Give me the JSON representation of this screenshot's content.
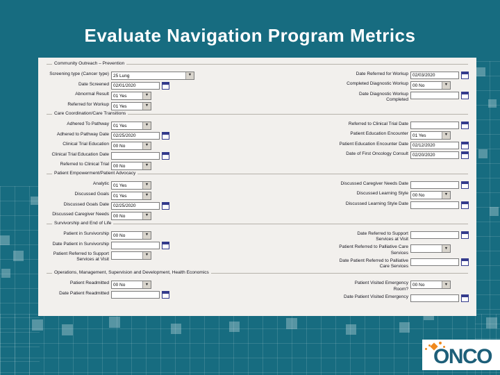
{
  "title": "Evaluate Navigation Program Metrics",
  "logo": {
    "text": "ONCO"
  },
  "theme": {
    "background_teal": "#176c80",
    "panel_background": "#f2f0ed",
    "title_color": "#ffffff",
    "logo_teal": "#1d5f79",
    "logo_orange": "#f0891e",
    "grid_square": "rgba(255,255,255,0.28)"
  },
  "form": {
    "sections": [
      {
        "header": "Community Outreach – Prevention",
        "left": [
          {
            "label": "Screening type (Cancer type)",
            "type": "select",
            "value": "25 Lung",
            "wide": true
          },
          {
            "label": "Date Screened",
            "type": "date",
            "value": "02/01/2020"
          },
          {
            "label": "Abnormal Result",
            "type": "select",
            "value": "01 Yes"
          },
          {
            "label": "Referred for Workup",
            "type": "select",
            "value": "01 Yes"
          }
        ],
        "right": [
          {
            "label": "Date Referred for Workup",
            "type": "date",
            "value": "02/03/2020"
          },
          {
            "label": "Completed Diagnostic Workup",
            "type": "select",
            "value": "00 No"
          },
          {
            "label": "Date Diagnostic Workup Completed",
            "type": "date",
            "value": ""
          }
        ]
      },
      {
        "header": "Care Coordination/Care Transitions",
        "left": [
          {
            "label": "Adhered To Pathway",
            "type": "select",
            "value": "01 Yes"
          },
          {
            "label": "Adhered to Pathway Date",
            "type": "date",
            "value": "02/25/2020"
          },
          {
            "label": "Clinical Trial Education",
            "type": "select",
            "value": "00 No"
          },
          {
            "label": "Clinical Trial Education Date",
            "type": "date",
            "value": ""
          },
          {
            "label": "Referred to Clinical Trial",
            "type": "select",
            "value": "00 No"
          }
        ],
        "right": [
          {
            "label": "Referred to Clinical Trial Date",
            "type": "date",
            "value": ""
          },
          {
            "label": "Patient Education Encounter",
            "type": "select",
            "value": "01 Yes"
          },
          {
            "label": "Patient Education Encounter Date",
            "type": "date",
            "value": "02/12/2020"
          },
          {
            "label": "Date of First Oncology Consult",
            "type": "date",
            "value": "02/20/2020"
          }
        ]
      },
      {
        "header": "Patient Empowerment/Patient Advocacy",
        "left": [
          {
            "label": "Analytic",
            "type": "select",
            "value": "01 Yes"
          },
          {
            "label": "Discussed Goals",
            "type": "select",
            "value": "01 Yes"
          },
          {
            "label": "Discussed Goals Date",
            "type": "date",
            "value": "02/25/2020"
          },
          {
            "label": "Discussed Caregiver Needs",
            "type": "select",
            "value": "00 No"
          }
        ],
        "right": [
          {
            "label": "Discussed Caregiver Needs Date",
            "type": "date",
            "value": ""
          },
          {
            "label": "Discussed Learning Style",
            "type": "select",
            "value": "00 No"
          },
          {
            "label": "Discussed Learning Style Date",
            "type": "date",
            "value": ""
          }
        ]
      },
      {
        "header": "Survivorship and End of Life",
        "left": [
          {
            "label": "Patient in Survivorship",
            "type": "select",
            "value": "00 No"
          },
          {
            "label": "Date Patient in Survivorship",
            "type": "date",
            "value": ""
          },
          {
            "label": "Patient Referred to Support Services at Visit",
            "type": "select",
            "value": ""
          }
        ],
        "right": [
          {
            "label": "Date Referred to Support Services at Visit",
            "type": "date",
            "value": ""
          },
          {
            "label": "Patient Referred to Palliative Care Services",
            "type": "select",
            "value": ""
          },
          {
            "label": "Date Patient Referred to Palliative Care Services",
            "type": "date",
            "value": ""
          }
        ]
      },
      {
        "header": "Operations, Management, Supervision and Development, Health Economics",
        "left": [
          {
            "label": "Patient Readmitted",
            "type": "select",
            "value": "00 No"
          },
          {
            "label": "Date Patient Readmitted",
            "type": "date",
            "value": ""
          }
        ],
        "right": [
          {
            "label": "Patient Visited Emergency Room?",
            "type": "select",
            "value": "00 No"
          },
          {
            "label": "Date Patient Visited Emergency",
            "type": "date",
            "value": ""
          }
        ]
      }
    ]
  }
}
